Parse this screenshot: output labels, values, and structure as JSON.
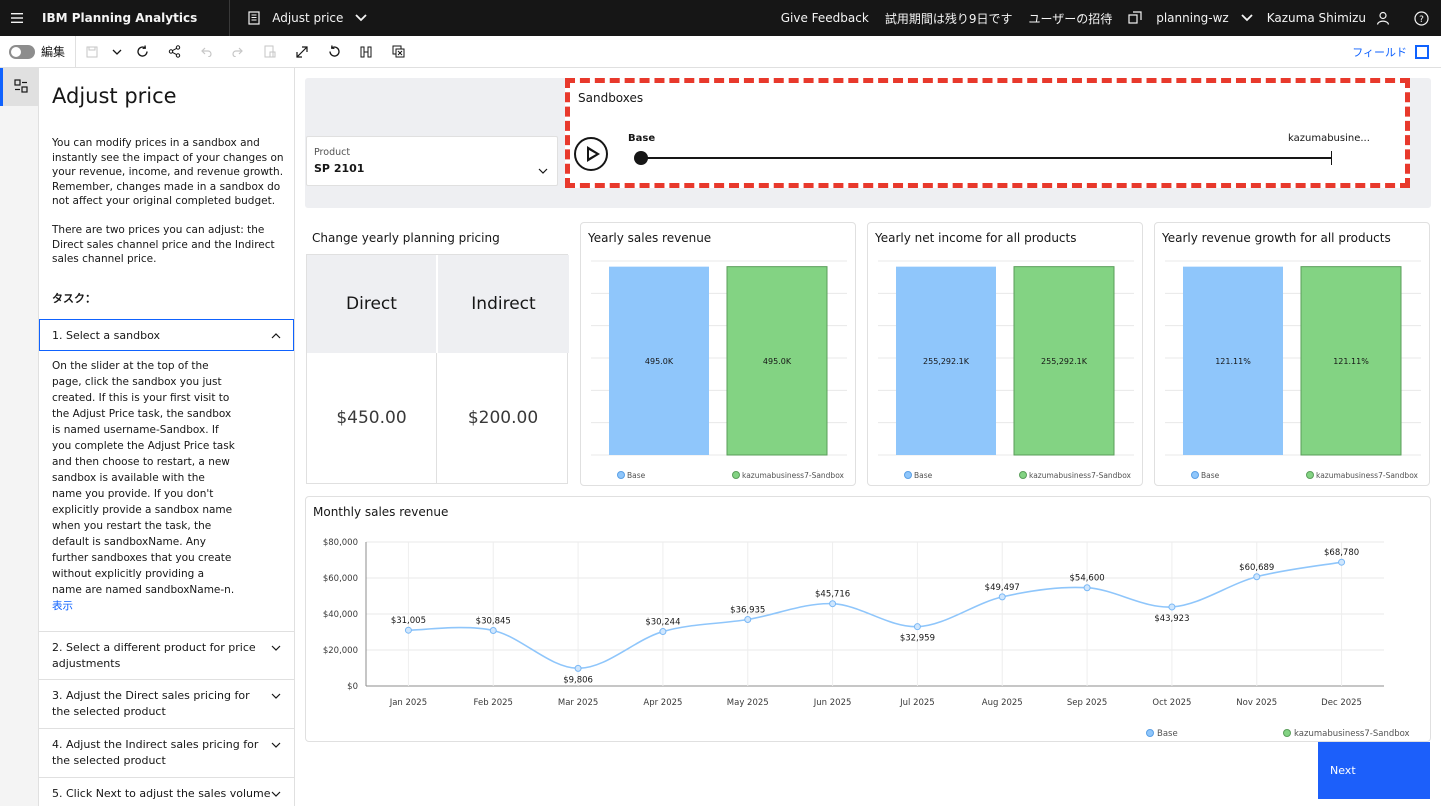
{
  "header": {
    "brand": "IBM Planning Analytics",
    "workspace_title": "Adjust price",
    "give_feedback": "Give Feedback",
    "trial": "試用期間は残り9日です",
    "invite": "ユーザーの招待",
    "tenant": "planning-wz",
    "user": "Kazuma Shimizu",
    "icons": [
      "menu-icon",
      "book-icon",
      "chevron-down-icon",
      "switch-icon",
      "user-icon",
      "help-icon"
    ]
  },
  "toolbar": {
    "edit_label": "編集",
    "field_label": "フィールド"
  },
  "panel": {
    "title": "Adjust price",
    "intro_1": "You can modify prices in a sandbox and instantly see the impact of your changes on your revenue, income, and revenue growth. Remember, changes made in a sandbox do not affect your original completed budget.",
    "intro_2": "There are two prices you can adjust: the Direct sales channel price and the Indirect sales channel price.",
    "tasks_heading": "タスク：",
    "tasks": [
      "1. Select a sandbox",
      "2. Select a different product for price adjustments",
      "3. Adjust the Direct sales pricing for the selected product",
      "4. Adjust the Indirect sales pricing for the selected product",
      "5. Click Next to adjust the sales volume"
    ],
    "task1_body": "On the slider at the top of the page, click the sandbox you just created. If this is your first visit to the Adjust Price task, the sandbox is named username-Sandbox. If you complete the Adjust Price task and then choose to restart, a new sandbox is available with the name you provide. If you don't explicitly provide a sandbox name when you restart the task, the default is sandboxName. Any further sandboxes that you create without explicitly providing a name are named sandboxName-n.",
    "show_more": "表示"
  },
  "product": {
    "label": "Product",
    "value": "SP 2101"
  },
  "sandboxes": {
    "title": "Sandboxes",
    "base": "Base",
    "sandbox": "kazumabusine..."
  },
  "pricing": {
    "title": "Change yearly planning pricing",
    "direct_label": "Direct",
    "indirect_label": "Indirect",
    "direct_value": "$450.00",
    "indirect_value": "$200.00"
  },
  "colors": {
    "base": "#8fc6fb",
    "sandbox": "#83d383",
    "accent": "#0f62fe",
    "highlight": "#e8392c"
  },
  "legend": {
    "base": "Base",
    "sandbox": "kazumabusiness7-Sandbox"
  },
  "chart_data": [
    {
      "type": "bar",
      "title": "Yearly sales revenue",
      "categories": [
        "Base",
        "kazumabusiness7-Sandbox"
      ],
      "values": [
        495.0,
        495.0
      ],
      "labels": [
        "495.0K",
        "495.0K"
      ],
      "legend": [
        "Base",
        "kazumabusiness7-Sandbox"
      ]
    },
    {
      "type": "bar",
      "title": "Yearly net income for all products",
      "categories": [
        "Base",
        "kazumabusiness7-Sandbox"
      ],
      "values": [
        255292.1,
        255292.1
      ],
      "labels": [
        "255,292.1K",
        "255,292.1K"
      ],
      "legend": [
        "Base",
        "kazumabusiness7-Sandbox"
      ]
    },
    {
      "type": "bar",
      "title": "Yearly revenue growth for all products",
      "categories": [
        "Base",
        "kazumabusiness7-Sandbox"
      ],
      "values": [
        121.11,
        121.11
      ],
      "labels": [
        "121.11%",
        "121.11%"
      ],
      "legend": [
        "Base",
        "kazumabusiness7-Sandbox"
      ]
    },
    {
      "type": "line",
      "title": "Monthly sales revenue",
      "x": [
        "Jan 2025",
        "Feb 2025",
        "Mar 2025",
        "Apr 2025",
        "May 2025",
        "Jun 2025",
        "Jul 2025",
        "Aug 2025",
        "Sep 2025",
        "Oct 2025",
        "Nov 2025",
        "Dec 2025"
      ],
      "series": [
        {
          "name": "Base",
          "values": [
            31005,
            30845,
            9806,
            30244,
            36935,
            45716,
            32959,
            49497,
            54600,
            43923,
            60689,
            68780
          ]
        }
      ],
      "labels": [
        "$31,005",
        "$30,845",
        "$9,806",
        "$30,244",
        "$36,935",
        "$45,716",
        "$32,959",
        "$49,497",
        "$54,600",
        "$43,923",
        "$60,689",
        "$68,780"
      ],
      "yticks": [
        "$0",
        "$20,000",
        "$40,000",
        "$60,000",
        "$80,000"
      ],
      "ylim": [
        0,
        80000
      ],
      "legend": [
        "Base",
        "kazumabusiness7-Sandbox"
      ]
    }
  ],
  "next_label": "Next"
}
